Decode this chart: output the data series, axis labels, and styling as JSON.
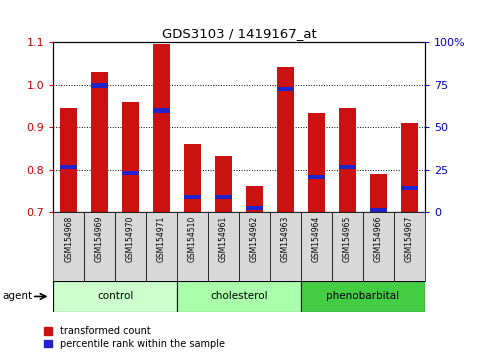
{
  "title": "GDS3103 / 1419167_at",
  "samples": [
    "GSM154968",
    "GSM154969",
    "GSM154970",
    "GSM154971",
    "GSM154510",
    "GSM154961",
    "GSM154962",
    "GSM154963",
    "GSM154964",
    "GSM154965",
    "GSM154966",
    "GSM154967"
  ],
  "transformed_count": [
    0.945,
    1.03,
    0.96,
    1.097,
    0.86,
    0.833,
    0.763,
    1.043,
    0.935,
    0.945,
    0.79,
    0.91
  ],
  "percentile_rank": [
    0.807,
    0.999,
    0.793,
    0.94,
    0.737,
    0.737,
    0.71,
    0.99,
    0.783,
    0.807,
    0.706,
    0.757
  ],
  "bar_bottom": 0.7,
  "ylim_left": [
    0.7,
    1.1
  ],
  "ylim_right": [
    0,
    100
  ],
  "yticks_left": [
    0.7,
    0.8,
    0.9,
    1.0,
    1.1
  ],
  "yticks_right": [
    0,
    25,
    50,
    75,
    100
  ],
  "yticklabels_right": [
    "0",
    "25",
    "50",
    "75",
    "100%"
  ],
  "groups": [
    {
      "label": "control",
      "start": 0,
      "end": 3
    },
    {
      "label": "cholesterol",
      "start": 4,
      "end": 7
    },
    {
      "label": "phenobarbital",
      "start": 8,
      "end": 11
    }
  ],
  "group_colors": [
    "#ccffcc",
    "#aaffaa",
    "#44cc44"
  ],
  "bar_color_red": "#cc1111",
  "bar_color_blue": "#2222cc",
  "tick_color_left": "#cc0000",
  "tick_color_right": "#0000cc",
  "legend_red": "transformed count",
  "legend_blue": "percentile rank within the sample",
  "bg_color": "#ffffff",
  "bar_width": 0.55,
  "blue_bar_height": 0.01
}
